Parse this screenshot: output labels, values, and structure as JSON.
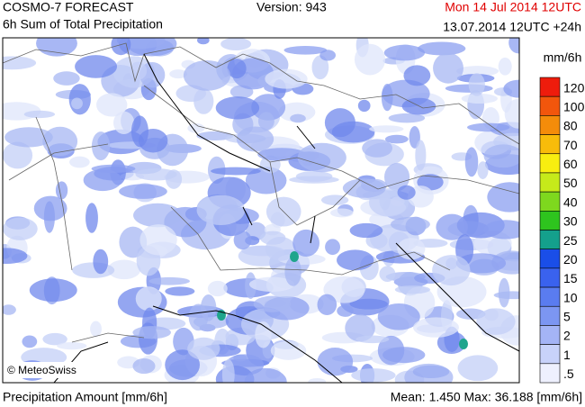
{
  "header": {
    "title": "COSMO-7 FORECAST",
    "subtitle": "6h Sum of Total Precipitation",
    "version": "Version: 943",
    "valid_time": "Mon 14 Jul 2014 12UTC",
    "run_time": "13.07.2014 12UTC +24h"
  },
  "map": {
    "credit": "© MeteoSwiss"
  },
  "legend": {
    "unit": "mm/6h",
    "levels": [
      {
        "label": "120",
        "color": "#ee1c0c"
      },
      {
        "label": "100",
        "color": "#f2560c"
      },
      {
        "label": "80",
        "color": "#f48c0a"
      },
      {
        "label": "70",
        "color": "#f8bc0a"
      },
      {
        "label": "60",
        "color": "#f8ee10"
      },
      {
        "label": "50",
        "color": "#c6ea1a"
      },
      {
        "label": "40",
        "color": "#7ed81e"
      },
      {
        "label": "30",
        "color": "#2ec41e"
      },
      {
        "label": "25",
        "color": "#14a08c"
      },
      {
        "label": "20",
        "color": "#1a4ee8"
      },
      {
        "label": "15",
        "color": "#3a62ee"
      },
      {
        "label": "10",
        "color": "#5a7cf0"
      },
      {
        "label": "5",
        "color": "#7c96f2"
      },
      {
        "label": "2",
        "color": "#a4b4f6"
      },
      {
        "label": "1",
        "color": "#c8d2fa"
      },
      {
        "label": ".5",
        "color": "#eef0fe"
      }
    ]
  },
  "footer": {
    "left": "Precipitation Amount [mm/6h]",
    "right": "Mean:  1.450 Max: 36.188 [mm/6h]"
  }
}
